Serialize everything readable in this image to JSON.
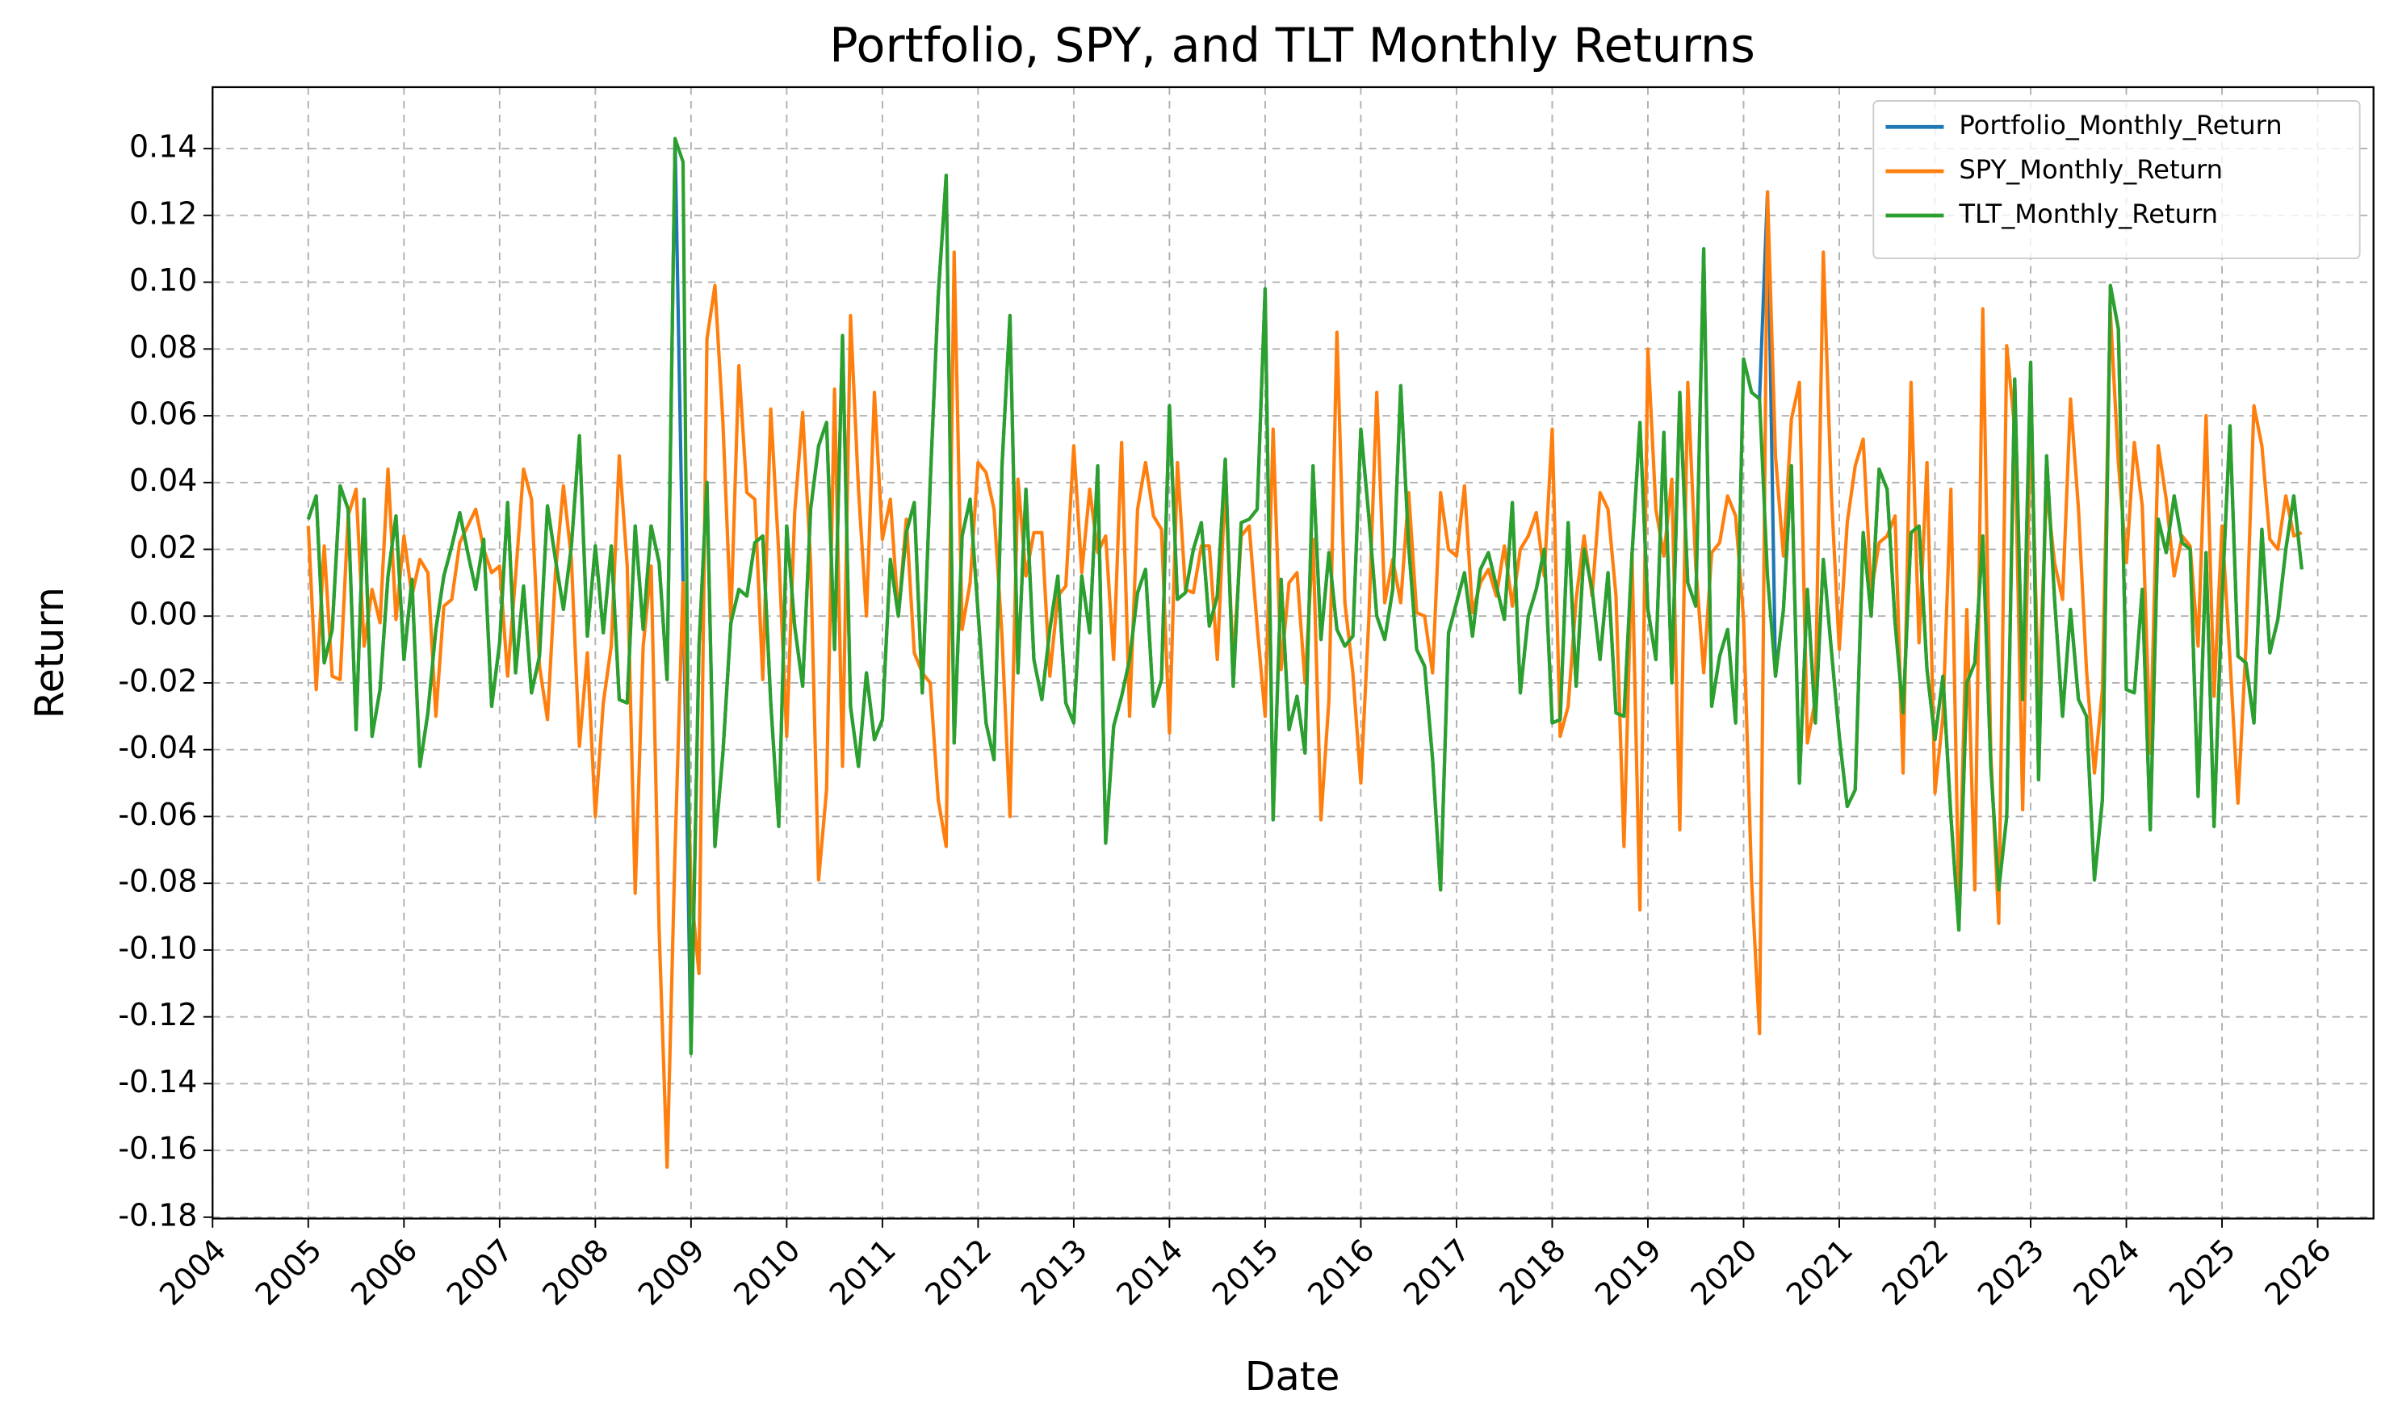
{
  "chart_data": {
    "type": "line",
    "title": "Portfolio, SPY, and TLT Monthly Returns",
    "x_label": "Date",
    "y_label": "Return",
    "x": [
      "2005-01",
      "2005-02",
      "2005-03",
      "2005-04",
      "2005-05",
      "2005-06",
      "2005-07",
      "2005-08",
      "2005-09",
      "2005-10",
      "2005-11",
      "2005-12",
      "2006-01",
      "2006-02",
      "2006-03",
      "2006-04",
      "2006-05",
      "2006-06",
      "2006-07",
      "2006-08",
      "2006-09",
      "2006-10",
      "2006-11",
      "2006-12",
      "2007-01",
      "2007-02",
      "2007-03",
      "2007-04",
      "2007-05",
      "2007-06",
      "2007-07",
      "2007-08",
      "2007-09",
      "2007-10",
      "2007-11",
      "2007-12",
      "2008-01",
      "2008-02",
      "2008-03",
      "2008-04",
      "2008-05",
      "2008-06",
      "2008-07",
      "2008-08",
      "2008-09",
      "2008-10",
      "2008-11",
      "2008-12",
      "2009-01",
      "2009-02",
      "2009-03",
      "2009-04",
      "2009-05",
      "2009-06",
      "2009-07",
      "2009-08",
      "2009-09",
      "2009-10",
      "2009-11",
      "2009-12",
      "2010-01",
      "2010-02",
      "2010-03",
      "2010-04",
      "2010-05",
      "2010-06",
      "2010-07",
      "2010-08",
      "2010-09",
      "2010-10",
      "2010-11",
      "2010-12",
      "2011-01",
      "2011-02",
      "2011-03",
      "2011-04",
      "2011-05",
      "2011-06",
      "2011-07",
      "2011-08",
      "2011-09",
      "2011-10",
      "2011-11",
      "2011-12",
      "2012-01",
      "2012-02",
      "2012-03",
      "2012-04",
      "2012-05",
      "2012-06",
      "2012-07",
      "2012-08",
      "2012-09",
      "2012-10",
      "2012-11",
      "2012-12",
      "2013-01",
      "2013-02",
      "2013-03",
      "2013-04",
      "2013-05",
      "2013-06",
      "2013-07",
      "2013-08",
      "2013-09",
      "2013-10",
      "2013-11",
      "2013-12",
      "2014-01",
      "2014-02",
      "2014-03",
      "2014-04",
      "2014-05",
      "2014-06",
      "2014-07",
      "2014-08",
      "2014-09",
      "2014-10",
      "2014-11",
      "2014-12",
      "2015-01",
      "2015-02",
      "2015-03",
      "2015-04",
      "2015-05",
      "2015-06",
      "2015-07",
      "2015-08",
      "2015-09",
      "2015-10",
      "2015-11",
      "2015-12",
      "2016-01",
      "2016-02",
      "2016-03",
      "2016-04",
      "2016-05",
      "2016-06",
      "2016-07",
      "2016-08",
      "2016-09",
      "2016-10",
      "2016-11",
      "2016-12",
      "2017-01",
      "2017-02",
      "2017-03",
      "2017-04",
      "2017-05",
      "2017-06",
      "2017-07",
      "2017-08",
      "2017-09",
      "2017-10",
      "2017-11",
      "2017-12",
      "2018-01",
      "2018-02",
      "2018-03",
      "2018-04",
      "2018-05",
      "2018-06",
      "2018-07",
      "2018-08",
      "2018-09",
      "2018-10",
      "2018-11",
      "2018-12",
      "2019-01",
      "2019-02",
      "2019-03",
      "2019-04",
      "2019-05",
      "2019-06",
      "2019-07",
      "2019-08",
      "2019-09",
      "2019-10",
      "2019-11",
      "2019-12",
      "2020-01",
      "2020-02",
      "2020-03",
      "2020-04",
      "2020-05",
      "2020-06",
      "2020-07",
      "2020-08",
      "2020-09",
      "2020-10",
      "2020-11",
      "2020-12",
      "2021-01",
      "2021-02",
      "2021-03",
      "2021-04",
      "2021-05",
      "2021-06",
      "2021-07",
      "2021-08",
      "2021-09",
      "2021-10",
      "2021-11",
      "2021-12",
      "2022-01",
      "2022-02",
      "2022-03",
      "2022-04",
      "2022-05",
      "2022-06",
      "2022-07",
      "2022-08",
      "2022-09",
      "2022-10",
      "2022-11",
      "2022-12",
      "2023-01",
      "2023-02",
      "2023-03",
      "2023-04",
      "2023-05",
      "2023-06",
      "2023-07",
      "2023-08",
      "2023-09",
      "2023-10",
      "2023-11",
      "2023-12",
      "2024-01",
      "2024-02",
      "2024-03",
      "2024-04",
      "2024-05",
      "2024-06",
      "2024-07",
      "2024-08",
      "2024-09",
      "2024-10",
      "2024-11",
      "2024-12",
      "2025-01",
      "2025-02",
      "2025-03",
      "2025-04",
      "2025-05",
      "2025-06",
      "2025-07",
      "2025-08",
      "2025-09",
      "2025-10",
      "2025-11"
    ],
    "series": [
      {
        "name": "Portfolio_Monthly_Return",
        "color": "#1f77b4",
        "values": [
          0.029,
          0.036,
          -0.014,
          -0.004,
          0.039,
          0.032,
          -0.034,
          0.035,
          -0.036,
          -0.022,
          0.012,
          0.03,
          -0.013,
          0.011,
          -0.045,
          -0.029,
          -0.004,
          0.012,
          0.021,
          0.031,
          0.019,
          0.008,
          0.023,
          -0.027,
          -0.008,
          0.034,
          -0.017,
          0.009,
          -0.023,
          -0.012,
          0.033,
          0.017,
          0.002,
          0.021,
          0.054,
          -0.006,
          0.021,
          -0.005,
          0.021,
          -0.025,
          -0.026,
          0.027,
          -0.004,
          0.027,
          0.016,
          -0.019,
          0.143,
          0.01,
          -0.131,
          -0.009,
          0.04,
          -0.069,
          -0.041,
          -0.002,
          0.008,
          0.006,
          0.022,
          0.024,
          -0.026,
          -0.063,
          0.027,
          -0.003,
          -0.021,
          0.032,
          0.051,
          0.058,
          -0.01,
          0.084,
          -0.027,
          -0.045,
          -0.017,
          -0.037,
          -0.031,
          0.017,
          0.0,
          0.025,
          0.034,
          -0.023,
          0.04,
          0.096,
          0.132,
          -0.038,
          0.024,
          0.035,
          0.001,
          -0.032,
          -0.043,
          0.045,
          0.09,
          -0.017,
          0.038,
          -0.013,
          -0.025,
          -0.004,
          0.012,
          -0.026,
          -0.032,
          0.012,
          -0.005,
          0.045,
          -0.068,
          -0.033,
          -0.024,
          -0.013,
          0.007,
          0.014,
          -0.027,
          -0.019,
          0.063,
          0.005,
          0.007,
          0.02,
          0.028,
          -0.003,
          0.006,
          0.047,
          -0.021,
          0.028,
          0.029,
          0.032,
          0.098,
          -0.061,
          0.011,
          -0.034,
          -0.024,
          -0.041,
          0.045,
          -0.007,
          0.019,
          -0.004,
          -0.009,
          -0.006,
          0.056,
          0.03,
          0.0,
          -0.007,
          0.008,
          0.069,
          0.021,
          -0.01,
          -0.015,
          -0.043,
          -0.082,
          -0.005,
          0.004,
          0.013,
          -0.006,
          0.014,
          0.019,
          0.009,
          -0.001,
          0.034,
          -0.023,
          0.0,
          0.008,
          0.02,
          -0.032,
          -0.031,
          0.028,
          -0.021,
          0.02,
          0.008,
          -0.013,
          0.013,
          -0.029,
          -0.03,
          0.018,
          0.058,
          0.002,
          -0.013,
          0.055,
          -0.02,
          0.067,
          0.01,
          0.003,
          0.11,
          -0.027,
          -0.012,
          -0.004,
          -0.032,
          0.077,
          0.067,
          0.065,
          0.127,
          -0.018,
          0.002,
          0.045,
          -0.05,
          0.008,
          -0.032,
          0.017,
          -0.01,
          -0.036,
          -0.057,
          -0.052,
          0.025,
          0.0,
          0.044,
          0.038,
          -0.002,
          -0.029,
          0.025,
          0.027,
          -0.016,
          -0.037,
          -0.018,
          -0.06,
          -0.094,
          -0.02,
          -0.014,
          0.024,
          -0.045,
          -0.082,
          -0.06,
          0.071,
          -0.025,
          0.076,
          -0.049,
          0.048,
          0.005,
          -0.03,
          0.002,
          -0.025,
          -0.03,
          -0.079,
          -0.055,
          0.099,
          0.086,
          -0.022,
          -0.023,
          0.008,
          -0.064,
          0.029,
          0.019,
          0.036,
          0.022,
          0.02,
          -0.054,
          0.019,
          -0.063,
          0.005,
          0.057,
          -0.012,
          -0.014,
          -0.032,
          0.026,
          -0.011,
          -0.001,
          0.02,
          0.036,
          0.014
        ]
      },
      {
        "name": "SPY_Monthly_Return",
        "color": "#ff7f0e",
        "values": [
          0.027,
          -0.022,
          0.021,
          -0.018,
          -0.019,
          0.03,
          0.038,
          -0.009,
          0.008,
          -0.002,
          0.044,
          -0.001,
          0.024,
          0.006,
          0.017,
          0.013,
          -0.03,
          0.003,
          0.005,
          0.022,
          0.027,
          0.032,
          0.02,
          0.013,
          0.015,
          -0.018,
          0.012,
          0.044,
          0.035,
          -0.015,
          -0.031,
          0.013,
          0.039,
          0.017,
          -0.039,
          -0.011,
          -0.06,
          -0.026,
          -0.009,
          0.048,
          0.015,
          -0.083,
          -0.009,
          0.015,
          -0.094,
          -0.165,
          -0.07,
          0.01,
          -0.082,
          -0.107,
          0.083,
          0.099,
          0.058,
          -0.001,
          0.075,
          0.037,
          0.035,
          -0.019,
          0.062,
          0.019,
          -0.036,
          0.031,
          0.061,
          0.016,
          -0.079,
          -0.052,
          0.068,
          -0.045,
          0.09,
          0.038,
          0.0,
          0.067,
          0.023,
          0.035,
          0.0,
          0.029,
          -0.011,
          -0.017,
          -0.02,
          -0.055,
          -0.069,
          0.109,
          -0.004,
          0.01,
          0.046,
          0.043,
          0.032,
          -0.006,
          -0.06,
          0.041,
          0.012,
          0.025,
          0.025,
          -0.018,
          0.006,
          0.009,
          0.051,
          0.013,
          0.038,
          0.019,
          0.024,
          -0.013,
          0.052,
          -0.03,
          0.032,
          0.046,
          0.03,
          0.026,
          -0.035,
          0.046,
          0.008,
          0.007,
          0.021,
          0.021,
          -0.013,
          0.04,
          -0.014,
          0.024,
          0.027,
          -0.003,
          -0.03,
          0.056,
          -0.016,
          0.01,
          0.013,
          -0.02,
          0.023,
          -0.061,
          -0.025,
          0.085,
          0.004,
          -0.017,
          -0.05,
          -0.001,
          0.067,
          0.004,
          0.017,
          0.004,
          0.037,
          0.001,
          0.0,
          -0.017,
          0.037,
          0.02,
          0.018,
          0.039,
          0.001,
          0.01,
          0.014,
          0.006,
          0.021,
          0.003,
          0.02,
          0.024,
          0.031,
          0.012,
          0.056,
          -0.036,
          -0.027,
          0.005,
          0.024,
          0.006,
          0.037,
          0.032,
          0.006,
          -0.069,
          0.019,
          -0.088,
          0.08,
          0.032,
          0.018,
          0.041,
          -0.064,
          0.07,
          0.015,
          -0.017,
          0.019,
          0.022,
          0.036,
          0.03,
          -0.001,
          -0.079,
          -0.125,
          0.127,
          0.048,
          0.018,
          0.059,
          0.07,
          -0.038,
          -0.025,
          0.109,
          0.037,
          -0.01,
          0.028,
          0.045,
          0.053,
          0.007,
          0.022,
          0.024,
          0.03,
          -0.047,
          0.07,
          -0.008,
          0.046,
          -0.053,
          -0.03,
          0.038,
          -0.088,
          0.002,
          -0.082,
          0.092,
          -0.041,
          -0.092,
          0.081,
          0.056,
          -0.058,
          0.063,
          -0.025,
          0.038,
          0.016,
          0.005,
          0.065,
          0.032,
          -0.016,
          -0.047,
          -0.022,
          0.091,
          0.046,
          0.016,
          0.052,
          0.033,
          -0.041,
          0.051,
          0.035,
          0.012,
          0.024,
          0.021,
          -0.009,
          0.06,
          -0.024,
          0.027,
          -0.013,
          -0.056,
          -0.009,
          0.063,
          0.051,
          0.023,
          0.02,
          0.036,
          0.024,
          0.025
        ]
      },
      {
        "name": "TLT_Monthly_Return",
        "color": "#2ca02c",
        "values": [
          0.029,
          0.036,
          -0.014,
          -0.004,
          0.039,
          0.032,
          -0.034,
          0.035,
          -0.036,
          -0.022,
          0.012,
          0.03,
          -0.013,
          0.011,
          -0.045,
          -0.029,
          -0.004,
          0.012,
          0.021,
          0.031,
          0.019,
          0.008,
          0.023,
          -0.027,
          -0.008,
          0.034,
          -0.017,
          0.009,
          -0.023,
          -0.012,
          0.033,
          0.017,
          0.002,
          0.021,
          0.054,
          -0.006,
          0.021,
          -0.005,
          0.021,
          -0.025,
          -0.026,
          0.027,
          -0.004,
          0.027,
          0.016,
          -0.019,
          0.143,
          0.136,
          -0.131,
          -0.009,
          0.04,
          -0.069,
          -0.041,
          -0.002,
          0.008,
          0.006,
          0.022,
          0.024,
          -0.026,
          -0.063,
          0.027,
          -0.003,
          -0.021,
          0.032,
          0.051,
          0.058,
          -0.01,
          0.084,
          -0.027,
          -0.045,
          -0.017,
          -0.037,
          -0.031,
          0.017,
          0.0,
          0.025,
          0.034,
          -0.023,
          0.04,
          0.096,
          0.132,
          -0.038,
          0.024,
          0.035,
          0.001,
          -0.032,
          -0.043,
          0.045,
          0.09,
          -0.017,
          0.038,
          -0.013,
          -0.025,
          -0.004,
          0.012,
          -0.026,
          -0.032,
          0.012,
          -0.005,
          0.045,
          -0.068,
          -0.033,
          -0.024,
          -0.013,
          0.007,
          0.014,
          -0.027,
          -0.019,
          0.063,
          0.005,
          0.007,
          0.02,
          0.028,
          -0.003,
          0.006,
          0.047,
          -0.021,
          0.028,
          0.029,
          0.032,
          0.098,
          -0.061,
          0.011,
          -0.034,
          -0.024,
          -0.041,
          0.045,
          -0.007,
          0.019,
          -0.004,
          -0.009,
          -0.006,
          0.056,
          0.03,
          0.0,
          -0.007,
          0.008,
          0.069,
          0.021,
          -0.01,
          -0.015,
          -0.043,
          -0.082,
          -0.005,
          0.004,
          0.013,
          -0.006,
          0.014,
          0.019,
          0.009,
          -0.001,
          0.034,
          -0.023,
          0.0,
          0.008,
          0.02,
          -0.032,
          -0.031,
          0.028,
          -0.021,
          0.02,
          0.008,
          -0.013,
          0.013,
          -0.029,
          -0.03,
          0.018,
          0.058,
          0.002,
          -0.013,
          0.055,
          -0.02,
          0.067,
          0.01,
          0.003,
          0.11,
          -0.027,
          -0.012,
          -0.004,
          -0.032,
          0.077,
          0.067,
          0.065,
          0.012,
          -0.018,
          0.002,
          0.045,
          -0.05,
          0.008,
          -0.032,
          0.017,
          -0.01,
          -0.036,
          -0.057,
          -0.052,
          0.025,
          0.0,
          0.044,
          0.038,
          -0.002,
          -0.029,
          0.025,
          0.027,
          -0.016,
          -0.037,
          -0.018,
          -0.06,
          -0.094,
          -0.02,
          -0.014,
          0.024,
          -0.045,
          -0.082,
          -0.06,
          0.071,
          -0.025,
          0.076,
          -0.049,
          0.048,
          0.005,
          -0.03,
          0.002,
          -0.025,
          -0.03,
          -0.079,
          -0.055,
          0.099,
          0.086,
          -0.022,
          -0.023,
          0.008,
          -0.064,
          0.029,
          0.019,
          0.036,
          0.022,
          0.02,
          -0.054,
          0.019,
          -0.063,
          0.005,
          0.057,
          -0.012,
          -0.014,
          -0.032,
          0.026,
          -0.011,
          -0.001,
          0.02,
          0.036,
          0.014
        ]
      }
    ],
    "xlim": [
      "2004-01",
      "2026-08"
    ],
    "xticks": [
      "2004",
      "2005",
      "2006",
      "2007",
      "2008",
      "2009",
      "2010",
      "2011",
      "2012",
      "2013",
      "2014",
      "2015",
      "2016",
      "2017",
      "2018",
      "2019",
      "2020",
      "2021",
      "2022",
      "2023",
      "2024",
      "2025",
      "2026"
    ],
    "ylim": [
      -0.1804,
      0.1584
    ],
    "yticks": [
      -0.18,
      -0.16,
      -0.14,
      -0.12,
      {
        "value": -0.1,
        "label": "-0.10"
      },
      -0.08,
      -0.06,
      -0.04,
      -0.02,
      {
        "value": 0,
        "label": "0.00"
      },
      0.02,
      0.04,
      0.06,
      0.08,
      {
        "value": 0.1,
        "label": "0.10"
      },
      0.12,
      0.14
    ],
    "grid": true,
    "legend": "upper right"
  }
}
